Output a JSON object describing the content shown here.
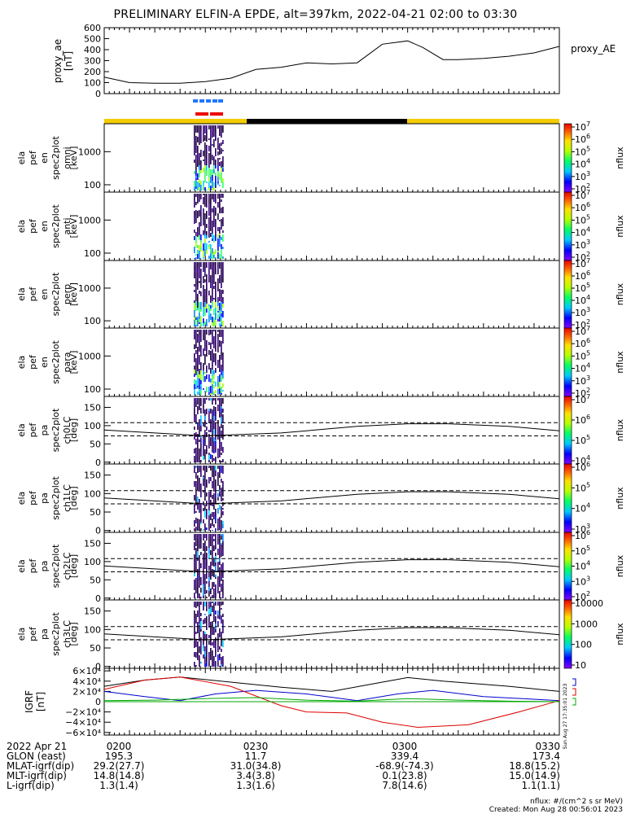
{
  "title": "PRELIMINARY ELFIN-A EPDE, alt=397km, 2022-04-21 02:00 to 03:30",
  "chart_data": [
    {
      "type": "line",
      "panel": "proxy_ae",
      "ylabel": [
        "proxy_ae",
        "[nT]"
      ],
      "legend": "proxy_AE",
      "ylim": [
        0,
        600
      ],
      "yticks": [
        "0",
        "100",
        "200",
        "300",
        "400",
        "500",
        "600"
      ],
      "x_minutes": [
        0,
        5,
        10,
        15,
        20,
        25,
        30,
        35,
        40,
        45,
        50,
        55,
        60,
        63,
        67,
        70,
        75,
        80,
        85,
        90
      ],
      "values": [
        150,
        100,
        95,
        95,
        110,
        140,
        220,
        240,
        280,
        270,
        280,
        450,
        480,
        420,
        310,
        310,
        320,
        340,
        370,
        430
      ]
    },
    {
      "type": "heatmap",
      "panel": "spec-omni",
      "ylabel": [
        "ela",
        "pef",
        "en",
        "spec2plot",
        "omni",
        "[keV]"
      ],
      "yticks": [
        "100",
        "1000"
      ],
      "colorbar_ticks": [
        "10^2",
        "10^3",
        "10^4",
        "10^5",
        "10^6",
        "10^7"
      ],
      "colorbar_label": "nflux"
    },
    {
      "type": "heatmap",
      "panel": "spec-anti",
      "ylabel": [
        "ela",
        "pef",
        "en",
        "spec2plot",
        "anti",
        "[keV]"
      ],
      "yticks": [
        "100",
        "1000"
      ],
      "colorbar_ticks": [
        "10^2",
        "10^3",
        "10^4",
        "10^5",
        "10^6",
        "10^7"
      ],
      "colorbar_label": "nflux"
    },
    {
      "type": "heatmap",
      "panel": "spec-perp",
      "ylabel": [
        "ela",
        "pef",
        "en",
        "spec2plot",
        "perp",
        "[keV]"
      ],
      "yticks": [
        "100",
        "1000"
      ],
      "colorbar_ticks": [
        "10^2",
        "10^3",
        "10^4",
        "10^5",
        "10^6",
        "10^7"
      ],
      "colorbar_label": "nflux"
    },
    {
      "type": "heatmap",
      "panel": "spec-para",
      "ylabel": [
        "ela",
        "pef",
        "en",
        "spec2plot",
        "para",
        "[keV]"
      ],
      "yticks": [
        "100",
        "1000"
      ],
      "colorbar_ticks": [
        "10^2",
        "10^3",
        "10^4",
        "10^5",
        "10^6",
        "10^7"
      ],
      "colorbar_label": "nflux"
    },
    {
      "type": "heatmap",
      "panel": "pa-ch0",
      "ylabel": [
        "ela",
        "pef",
        "pa",
        "spec2plot",
        "ch0LC",
        "[deg]"
      ],
      "yticks": [
        "0",
        "50",
        "100",
        "150"
      ],
      "colorbar_ticks": [
        "10^4",
        "10^5",
        "10^6",
        "10^7"
      ],
      "colorbar_label": "nflux"
    },
    {
      "type": "heatmap",
      "panel": "pa-ch1",
      "ylabel": [
        "ela",
        "pef",
        "pa",
        "spec2plot",
        "ch1LC",
        "[deg]"
      ],
      "yticks": [
        "0",
        "50",
        "100",
        "150"
      ],
      "colorbar_ticks": [
        "10^3",
        "10^4",
        "10^5",
        "10^6"
      ],
      "colorbar_label": "nflux"
    },
    {
      "type": "heatmap",
      "panel": "pa-ch2",
      "ylabel": [
        "ela",
        "pef",
        "pa",
        "spec2plot",
        "ch2LC",
        "[deg]"
      ],
      "yticks": [
        "0",
        "50",
        "100",
        "150"
      ],
      "colorbar_ticks": [
        "10^2",
        "10^3",
        "10^4",
        "10^5",
        "10^6"
      ],
      "colorbar_label": "nflux"
    },
    {
      "type": "heatmap",
      "panel": "pa-ch3",
      "ylabel": [
        "ela",
        "pef",
        "pa",
        "spec2plot",
        "ch3LC",
        "[deg]"
      ],
      "yticks": [
        "0",
        "50",
        "100",
        "150"
      ],
      "colorbar_ticks": [
        "10",
        "100",
        "1000",
        "10000"
      ],
      "colorbar_label": "nflux"
    },
    {
      "type": "line",
      "panel": "igrf",
      "ylabel": [
        "IGRF",
        "[nT]"
      ],
      "ylim": [
        -65000,
        65000
      ],
      "yticks": [
        "−6×10⁴",
        "−4×10⁴",
        "−2×10⁴",
        "0",
        "2×10⁴",
        "4×10⁴",
        "6×10⁴"
      ],
      "series": [
        {
          "name": "black",
          "color": "#000000"
        },
        {
          "name": "blue",
          "color": "#0000cc"
        },
        {
          "name": "red",
          "color": "#dd0000"
        },
        {
          "name": "green",
          "color": "#00aa00"
        }
      ]
    }
  ],
  "footer": {
    "rows": [
      {
        "label": "2022 Apr 21",
        "values": [
          "0200",
          "0230",
          "0300",
          "0330"
        ]
      },
      {
        "label": "GLON (east)",
        "values": [
          "195.3",
          "11.7",
          "339.4",
          "173.4"
        ]
      },
      {
        "label": "MLAT-igrf(dip)",
        "values": [
          "29.2(27.7)",
          "31.0(34.8)",
          "-68.9(-74.3)",
          "18.8(15.2)"
        ]
      },
      {
        "label": "MLT-igrf(dip)",
        "values": [
          "14.8(14.8)",
          "3.4(3.8)",
          "0.1(23.8)",
          "15.0(14.9)"
        ]
      },
      {
        "label": "L-igrf(dip)",
        "values": [
          "1.3(1.4)",
          "1.3(1.6)",
          "7.8(14.6)",
          "1.1(1.1)"
        ]
      }
    ],
    "flux_units": "nflux: #/(cm^2 s sr MeV)",
    "created": "Created: Mon Aug 28 00:56:01 2023",
    "side_stamp": "Sun Aug 27 17:35:01 2023"
  }
}
